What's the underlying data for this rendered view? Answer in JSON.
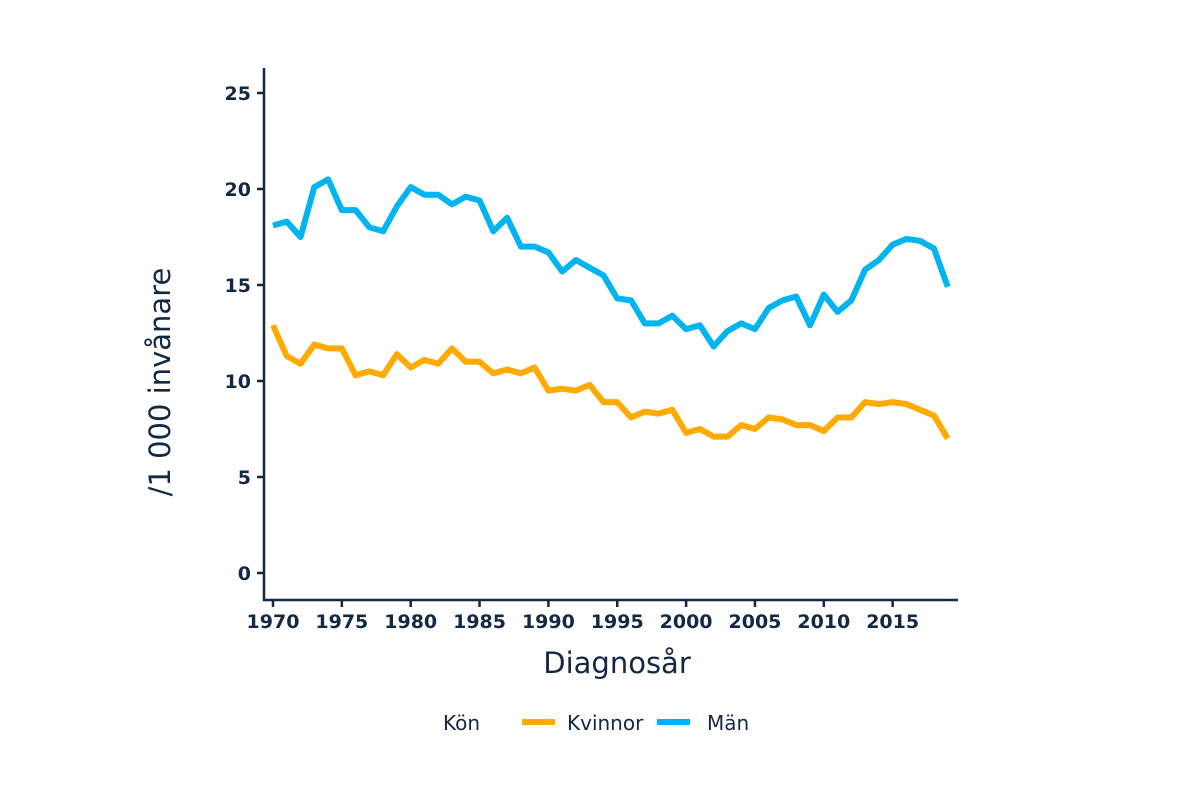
{
  "chart_data": {
    "type": "line",
    "xlabel": "Diagnosår",
    "ylabel": "/1 000 invånare",
    "ylim": [
      0,
      25
    ],
    "xlim": [
      1970,
      2019
    ],
    "yticks": [
      0,
      5,
      10,
      15,
      20,
      25
    ],
    "xticks": [
      1970,
      1975,
      1980,
      1985,
      1990,
      1995,
      2000,
      2005,
      2010,
      2015
    ],
    "grid": false,
    "legend": {
      "title": "Kön",
      "placement": "bottom"
    },
    "x": [
      1970,
      1971,
      1972,
      1973,
      1974,
      1975,
      1976,
      1977,
      1978,
      1979,
      1980,
      1981,
      1982,
      1983,
      1984,
      1985,
      1986,
      1987,
      1988,
      1989,
      1990,
      1991,
      1992,
      1993,
      1994,
      1995,
      1996,
      1997,
      1998,
      1999,
      2000,
      2001,
      2002,
      2003,
      2004,
      2005,
      2006,
      2007,
      2008,
      2009,
      2010,
      2011,
      2012,
      2013,
      2014,
      2015,
      2016,
      2017,
      2018,
      2019
    ],
    "series": [
      {
        "name": "Kvinnor",
        "color": "#FFAA00",
        "values": [
          12.9,
          11.3,
          10.9,
          11.9,
          11.7,
          11.7,
          10.3,
          10.5,
          10.3,
          11.4,
          10.7,
          11.1,
          10.9,
          11.7,
          11.0,
          11.0,
          10.4,
          10.6,
          10.4,
          10.7,
          9.5,
          9.6,
          9.5,
          9.8,
          8.9,
          8.9,
          8.1,
          8.4,
          8.3,
          8.5,
          7.3,
          7.5,
          7.1,
          7.1,
          7.7,
          7.5,
          8.1,
          8.0,
          7.7,
          7.7,
          7.4,
          8.1,
          8.1,
          8.9,
          8.8,
          8.9,
          8.8,
          8.5,
          8.2,
          7.0
        ]
      },
      {
        "name": "Män",
        "color": "#00B4F0",
        "values": [
          18.1,
          18.3,
          17.5,
          20.1,
          20.5,
          18.9,
          18.9,
          18.0,
          17.8,
          19.1,
          20.1,
          19.7,
          19.7,
          19.2,
          19.6,
          19.4,
          17.8,
          18.5,
          17.0,
          17.0,
          16.7,
          15.7,
          16.3,
          15.9,
          15.5,
          14.3,
          14.2,
          13.0,
          13.0,
          13.4,
          12.7,
          12.9,
          11.8,
          12.6,
          13.0,
          12.7,
          13.8,
          14.2,
          14.4,
          12.9,
          14.5,
          13.6,
          14.2,
          15.8,
          16.3,
          17.1,
          17.4,
          17.3,
          16.9,
          14.9
        ]
      }
    ]
  }
}
